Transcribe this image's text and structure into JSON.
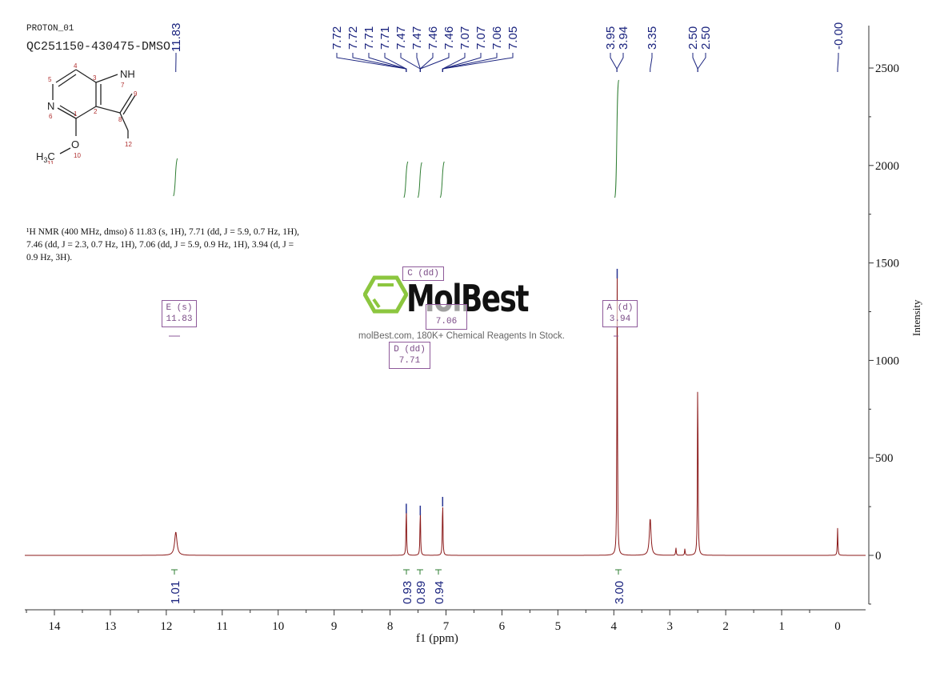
{
  "header": {
    "experiment": "PROTON_01",
    "sample_id": "QC251150-430475-DMSO"
  },
  "structure": {
    "atoms": [
      "1",
      "2",
      "3",
      "4",
      "5",
      "6",
      "7",
      "8",
      "9",
      "10",
      "11",
      "12"
    ],
    "labels": {
      "nh": "NH",
      "n": "N",
      "o": "O",
      "h3c": "H3C"
    }
  },
  "description": {
    "line1": "¹H NMR (400 MHz, dmso) δ 11.83 (s, 1H), 7.71 (dd, J = 5.9, 0.7 Hz, 1H),",
    "line2": "7.46 (dd, J = 2.3, 0.7 Hz, 1H), 7.06 (dd, J = 5.9, 0.9 Hz, 1H), 3.94 (d, J =",
    "line3": "0.9 Hz, 3H)."
  },
  "watermark": {
    "brand": "MolBest",
    "tagline": "molBest.com, 180K+ Chemical Reagents In Stock.",
    "logo_color": "#8cc63f"
  },
  "multiplet_boxes": [
    {
      "id": "E",
      "mult": "(s)",
      "shift": "11.83"
    },
    {
      "id": "C",
      "mult": "(dd)",
      "shift": "7.06"
    },
    {
      "id": "D",
      "mult": "(dd)",
      "shift": "7.71"
    },
    {
      "id": "A",
      "mult": "(d)",
      "shift": "3.94"
    }
  ],
  "colors": {
    "spectrum": "#8b1a1a",
    "peak_labels": "#1a237e",
    "integrals": "#2e7d32",
    "boxes": "#8e5a9a",
    "axis": "#333333"
  },
  "chart_data": {
    "type": "line",
    "title": "PROTON_01 QC251150-430475-DMSO",
    "xlabel": "f1 (ppm)",
    "ylabel": "Intensity",
    "xlim": [
      14.5,
      -0.5
    ],
    "ylim": [
      -250,
      2700
    ],
    "x_ticks": [
      "14",
      "13",
      "12",
      "11",
      "10",
      "9",
      "8",
      "7",
      "6",
      "5",
      "4",
      "3",
      "2",
      "1",
      "0"
    ],
    "y_ticks": [
      "0",
      "500",
      "1000",
      "1500",
      "2000",
      "2500"
    ],
    "grid": false,
    "peak_labels": [
      "11.83",
      "7.72",
      "7.72",
      "7.71",
      "7.71",
      "7.47",
      "7.47",
      "7.46",
      "7.46",
      "7.07",
      "7.07",
      "7.06",
      "7.05",
      "3.95",
      "3.94",
      "3.35",
      "2.50",
      "2.50",
      "-0.00"
    ],
    "peaks": [
      {
        "ppm": 11.83,
        "intensity": 120
      },
      {
        "ppm": 7.71,
        "intensity": 265
      },
      {
        "ppm": 7.46,
        "intensity": 255
      },
      {
        "ppm": 7.06,
        "intensity": 300
      },
      {
        "ppm": 3.94,
        "intensity": 1470
      },
      {
        "ppm": 3.35,
        "intensity": 190
      },
      {
        "ppm": 2.89,
        "intensity": 40
      },
      {
        "ppm": 2.73,
        "intensity": 35
      },
      {
        "ppm": 2.5,
        "intensity": 990
      },
      {
        "ppm": 0.0,
        "intensity": 140
      }
    ],
    "integrals": [
      {
        "ppm": 11.83,
        "value": "1.01"
      },
      {
        "ppm": 7.71,
        "value": "0.93"
      },
      {
        "ppm": 7.46,
        "value": "0.89"
      },
      {
        "ppm": 7.06,
        "value": "0.94"
      },
      {
        "ppm": 3.94,
        "value": "3.00"
      }
    ]
  }
}
